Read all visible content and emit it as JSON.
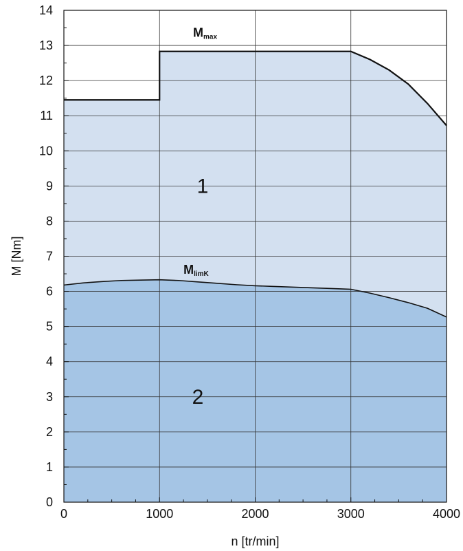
{
  "chart_data": {
    "type": "area",
    "xlabel": "n [tr/min]",
    "ylabel": "M [Nm]",
    "xlim": [
      0,
      4000
    ],
    "ylim": [
      0,
      14
    ],
    "x_ticks": [
      0,
      1000,
      2000,
      3000,
      4000
    ],
    "y_ticks": [
      0,
      1,
      2,
      3,
      4,
      5,
      6,
      7,
      8,
      9,
      10,
      11,
      12,
      13,
      14
    ],
    "grid": true,
    "legend": "none",
    "series": [
      {
        "name": "Mmax",
        "label_main": "M",
        "label_sub": "max",
        "label_at": [
          1350,
          13.25
        ],
        "color": "#d3e0f0",
        "points": [
          [
            0,
            11.45
          ],
          [
            1000,
            11.45
          ],
          [
            1000,
            12.83
          ],
          [
            3000,
            12.83
          ],
          [
            3200,
            12.6
          ],
          [
            3400,
            12.3
          ],
          [
            3600,
            11.9
          ],
          [
            3800,
            11.35
          ],
          [
            4000,
            10.72
          ]
        ]
      },
      {
        "name": "MlimK",
        "label_main": "M",
        "label_sub": "limK",
        "label_at": [
          1250,
          6.5
        ],
        "color": "#a5c5e5",
        "points": [
          [
            0,
            6.18
          ],
          [
            200,
            6.24
          ],
          [
            400,
            6.28
          ],
          [
            600,
            6.31
          ],
          [
            800,
            6.32
          ],
          [
            1000,
            6.33
          ],
          [
            1200,
            6.31
          ],
          [
            1400,
            6.27
          ],
          [
            1600,
            6.23
          ],
          [
            1800,
            6.19
          ],
          [
            2000,
            6.16
          ],
          [
            2200,
            6.14
          ],
          [
            2400,
            6.12
          ],
          [
            2600,
            6.1
          ],
          [
            2800,
            6.08
          ],
          [
            3000,
            6.06
          ],
          [
            3200,
            5.95
          ],
          [
            3400,
            5.82
          ],
          [
            3600,
            5.68
          ],
          [
            3800,
            5.52
          ],
          [
            4000,
            5.27
          ]
        ]
      }
    ],
    "annotations": [
      {
        "text": "1",
        "x": 1450,
        "y": 9.0
      },
      {
        "text": "2",
        "x": 1400,
        "y": 3.0
      }
    ]
  }
}
